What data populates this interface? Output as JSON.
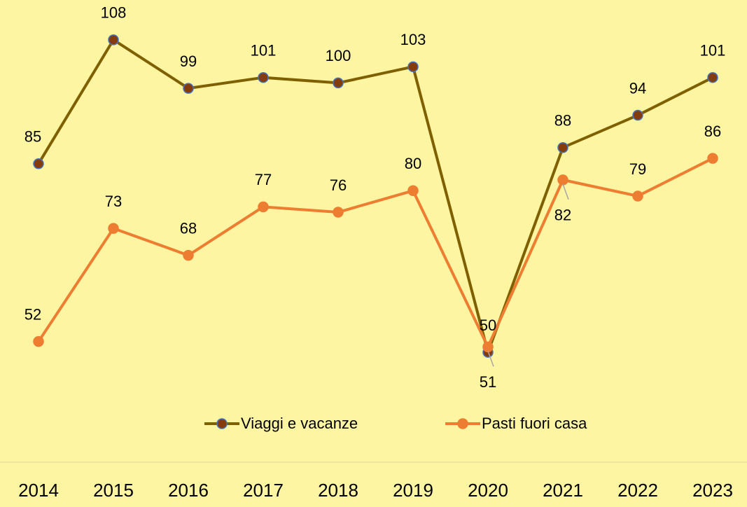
{
  "chart_data": {
    "type": "line",
    "categories": [
      "2014",
      "2015",
      "2016",
      "2017",
      "2018",
      "2019",
      "2020",
      "2021",
      "2022",
      "2023"
    ],
    "series": [
      {
        "name": "Viaggi e vacanze",
        "color": "#7F6000",
        "marker_color": "#843C0C",
        "values": [
          85,
          108,
          99,
          101,
          100,
          103,
          50,
          88,
          94,
          101
        ]
      },
      {
        "name": "Pasti fuori casa",
        "color": "#ED7D31",
        "marker_color": "#ED7D31",
        "values": [
          52,
          73,
          68,
          77,
          76,
          80,
          51,
          82,
          79,
          86
        ]
      }
    ],
    "ylim": [
      40,
      115
    ],
    "legend": "bottom"
  }
}
